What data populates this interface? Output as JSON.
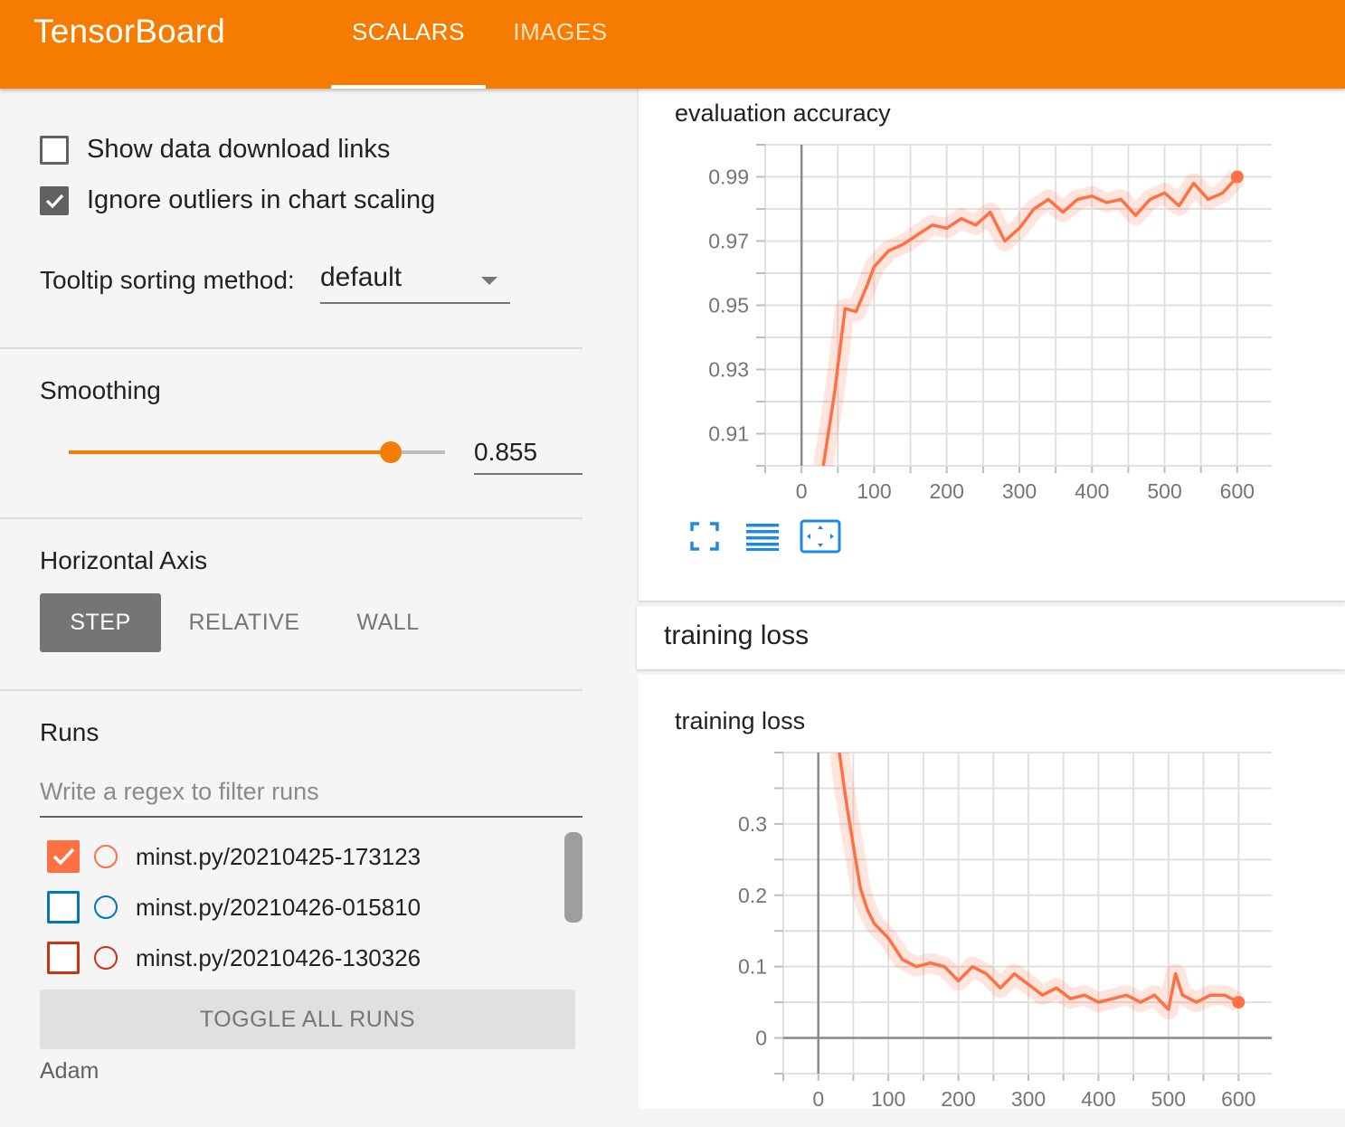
{
  "app": {
    "title": "TensorBoard",
    "tabs": [
      {
        "label": "SCALARS",
        "active": true
      },
      {
        "label": "IMAGES",
        "active": false
      }
    ],
    "accent_color": "#f57c00"
  },
  "sidebar": {
    "show_download_links": {
      "label": "Show data download links",
      "checked": false
    },
    "ignore_outliers": {
      "label": "Ignore outliers in chart scaling",
      "checked": true
    },
    "tooltip_sorting": {
      "label": "Tooltip sorting method:",
      "value": "default"
    },
    "smoothing": {
      "title": "Smoothing",
      "value": "0.855",
      "fraction": 0.855
    },
    "horizontal_axis": {
      "title": "Horizontal Axis",
      "options": [
        "STEP",
        "RELATIVE",
        "WALL"
      ],
      "selected": "STEP"
    },
    "runs": {
      "title": "Runs",
      "filter_placeholder": "Write a regex to filter runs",
      "items": [
        {
          "name": "minst.py/20210425-173123",
          "checked": true,
          "color": "#ff7043"
        },
        {
          "name": "minst.py/20210426-015810",
          "checked": false,
          "color": "#0077bb"
        },
        {
          "name": "minst.py/20210426-130326",
          "checked": false,
          "color": "#cc3311"
        }
      ],
      "toggle_all_label": "TOGGLE ALL RUNS",
      "footer_text": "Adam"
    }
  },
  "main": {
    "training_loss_group_label": "training loss",
    "chart_toolbar_icons": [
      "fullscreen-icon",
      "lines-icon",
      "fit-domain-icon"
    ]
  },
  "chart_data": [
    {
      "type": "line",
      "title": "evaluation accuracy",
      "xlabel": "",
      "ylabel": "",
      "x_ticks": [
        0,
        100,
        200,
        300,
        400,
        500,
        600
      ],
      "y_ticks": [
        0.91,
        0.93,
        0.95,
        0.97,
        0.99
      ],
      "xlim": [
        -50,
        650
      ],
      "ylim": [
        0.9,
        1.0
      ],
      "grid": true,
      "line_color": "#ff7043",
      "series": [
        {
          "smoothed": true,
          "x": [
            30,
            45,
            60,
            75,
            90,
            100,
            120,
            140,
            160,
            180,
            200,
            220,
            240,
            260,
            280,
            300,
            320,
            340,
            360,
            380,
            400,
            420,
            440,
            460,
            480,
            500,
            520,
            540,
            560,
            580,
            600
          ],
          "y": [
            0.9,
            0.922,
            0.949,
            0.948,
            0.956,
            0.962,
            0.967,
            0.969,
            0.972,
            0.975,
            0.974,
            0.977,
            0.975,
            0.979,
            0.97,
            0.974,
            0.98,
            0.983,
            0.979,
            0.983,
            0.984,
            0.982,
            0.983,
            0.978,
            0.983,
            0.985,
            0.981,
            0.988,
            0.983,
            0.985,
            0.99
          ]
        }
      ]
    },
    {
      "type": "line",
      "title": "training loss",
      "xlabel": "",
      "ylabel": "",
      "x_ticks": [
        0,
        100,
        200,
        300,
        400,
        500,
        600
      ],
      "y_ticks": [
        0,
        0.1,
        0.2,
        0.3
      ],
      "xlim": [
        -50,
        650
      ],
      "ylim": [
        -0.05,
        0.4
      ],
      "grid": true,
      "line_color": "#ff7043",
      "series": [
        {
          "smoothed": true,
          "x": [
            30,
            40,
            50,
            60,
            70,
            80,
            100,
            120,
            140,
            160,
            180,
            200,
            220,
            240,
            260,
            280,
            300,
            320,
            340,
            360,
            380,
            400,
            420,
            440,
            460,
            480,
            500,
            510,
            520,
            540,
            560,
            580,
            600
          ],
          "y": [
            0.4,
            0.33,
            0.27,
            0.21,
            0.18,
            0.16,
            0.14,
            0.11,
            0.1,
            0.105,
            0.1,
            0.08,
            0.1,
            0.09,
            0.07,
            0.09,
            0.075,
            0.06,
            0.07,
            0.055,
            0.06,
            0.05,
            0.055,
            0.06,
            0.05,
            0.06,
            0.04,
            0.09,
            0.06,
            0.05,
            0.06,
            0.06,
            0.05
          ]
        }
      ]
    }
  ]
}
